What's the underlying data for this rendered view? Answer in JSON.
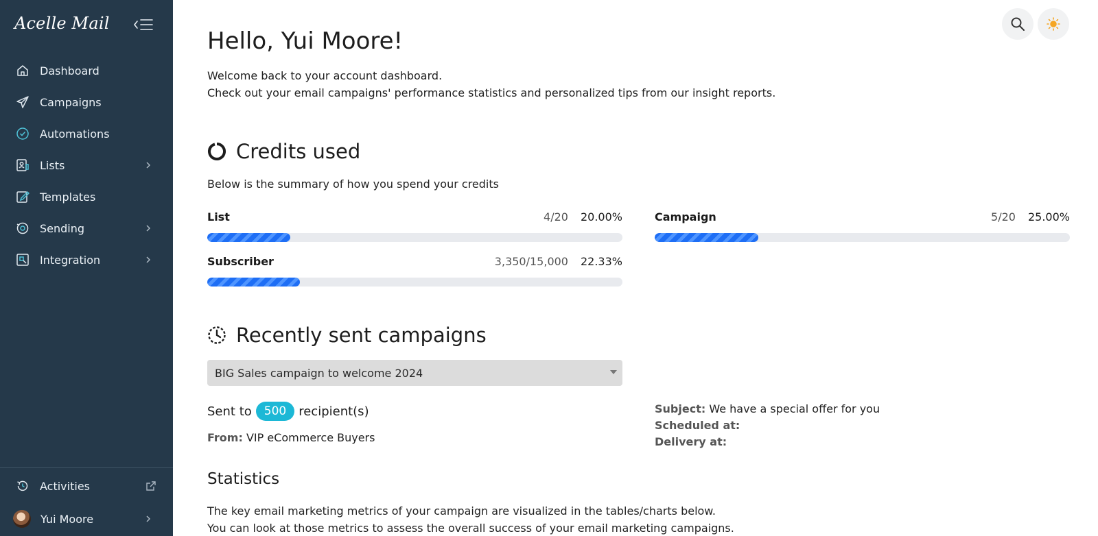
{
  "sidebar": {
    "logo": "Acelle Mail",
    "items": [
      {
        "label": "Dashboard",
        "icon": "home-icon",
        "has_chevron": false
      },
      {
        "label": "Campaigns",
        "icon": "paper-plane-icon",
        "has_chevron": false
      },
      {
        "label": "Automations",
        "icon": "shield-check-icon",
        "has_chevron": false
      },
      {
        "label": "Lists",
        "icon": "contact-list-icon",
        "has_chevron": true
      },
      {
        "label": "Templates",
        "icon": "edit-template-icon",
        "has_chevron": false
      },
      {
        "label": "Sending",
        "icon": "sending-server-icon",
        "has_chevron": true
      },
      {
        "label": "Integration",
        "icon": "integration-icon",
        "has_chevron": true
      }
    ],
    "activities_label": "Activities",
    "user_name": "Yui Moore"
  },
  "header": {
    "greeting": "Hello, Yui Moore!",
    "welcome_line1": "Welcome back to your account dashboard.",
    "welcome_line2": "Check out your email campaigns' performance statistics and personalized tips from our insight reports."
  },
  "credits": {
    "title": "Credits used",
    "description": "Below is the summary of how you spend your credits",
    "items": [
      {
        "name": "List",
        "count": "4/20",
        "percent": "20.00%",
        "fraction": 0.2
      },
      {
        "name": "Campaign",
        "count": "5/20",
        "percent": "25.00%",
        "fraction": 0.25
      },
      {
        "name": "Subscriber",
        "count": "3,350/15,000",
        "percent": "22.33%",
        "fraction": 0.2233
      }
    ]
  },
  "recent": {
    "title": "Recently sent campaigns",
    "selected_campaign": "BIG Sales campaign to welcome 2024",
    "sent_prefix": "Sent to",
    "recipients": "500",
    "sent_suffix": "recipient(s)",
    "from_label": "From:",
    "from_value": "VIP eCommerce Buyers",
    "subject_label": "Subject:",
    "subject_value": "We have a special offer for you",
    "scheduled_label": "Scheduled at:",
    "delivery_label": "Delivery at:"
  },
  "statistics": {
    "title": "Statistics",
    "line1": "The key email marketing metrics of your campaign are visualized in the tables/charts below.",
    "line2": "You can look at those metrics to assess the overall success of your email marketing campaigns."
  },
  "colors": {
    "sidebar_bg": "#25394a",
    "accent_blue": "#1e6ef5",
    "badge_cyan": "#1cb8d6",
    "theme_icon": "#f5a623"
  }
}
